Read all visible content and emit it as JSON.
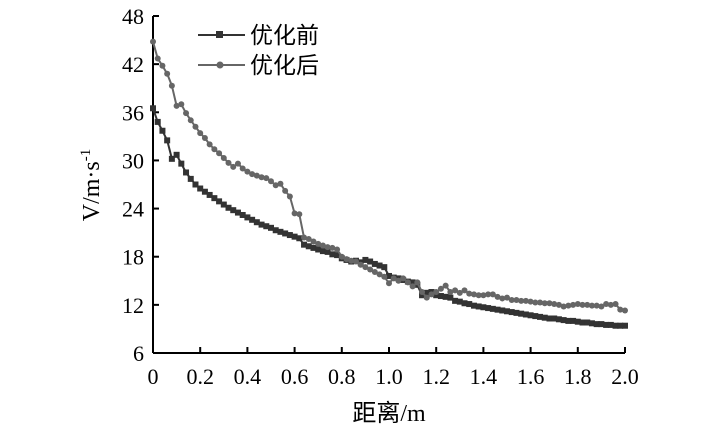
{
  "chart_data": {
    "type": "line",
    "title": "",
    "xlabel": "距离/m",
    "ylabel_main": "V/m·s",
    "ylabel_sup": "-1",
    "xlim": [
      0,
      2.0
    ],
    "ylim": [
      6,
      48
    ],
    "x_ticks": [
      "0",
      "0.2",
      "0.4",
      "0.6",
      "0.8",
      "1.0",
      "1.2",
      "1.4",
      "1.6",
      "1.8",
      "2.0"
    ],
    "y_ticks": [
      "6",
      "12",
      "18",
      "24",
      "30",
      "36",
      "42",
      "48"
    ],
    "grid": false,
    "legend_position": "top-left",
    "series": [
      {
        "name": "优化前",
        "color": "#333333",
        "marker": "square",
        "x": [
          0.0,
          0.02,
          0.04,
          0.06,
          0.08,
          0.1,
          0.12,
          0.14,
          0.16,
          0.18,
          0.2,
          0.22,
          0.24,
          0.26,
          0.28,
          0.3,
          0.32,
          0.34,
          0.36,
          0.38,
          0.4,
          0.42,
          0.44,
          0.46,
          0.48,
          0.5,
          0.52,
          0.54,
          0.56,
          0.58,
          0.6,
          0.62,
          0.64,
          0.66,
          0.68,
          0.7,
          0.72,
          0.74,
          0.76,
          0.78,
          0.8,
          0.82,
          0.84,
          0.86,
          0.88,
          0.9,
          0.92,
          0.94,
          0.96,
          0.98,
          1.0,
          1.02,
          1.04,
          1.06,
          1.08,
          1.1,
          1.12,
          1.14,
          1.16,
          1.18,
          1.2,
          1.22,
          1.24,
          1.26,
          1.28,
          1.3,
          1.32,
          1.34,
          1.36,
          1.38,
          1.4,
          1.42,
          1.44,
          1.46,
          1.48,
          1.5,
          1.52,
          1.54,
          1.56,
          1.58,
          1.6,
          1.62,
          1.64,
          1.66,
          1.68,
          1.7,
          1.72,
          1.74,
          1.76,
          1.78,
          1.8,
          1.82,
          1.84,
          1.86,
          1.88,
          1.9,
          1.92,
          1.94,
          1.96,
          1.98,
          2.0
        ],
        "y": [
          36.5,
          34.8,
          33.7,
          32.5,
          30.2,
          30.7,
          29.6,
          28.5,
          27.7,
          27.0,
          26.5,
          26.1,
          25.7,
          25.3,
          24.9,
          24.5,
          24.1,
          23.8,
          23.5,
          23.2,
          22.9,
          22.6,
          22.3,
          22.0,
          21.8,
          21.6,
          21.3,
          21.1,
          20.9,
          20.7,
          20.5,
          20.3,
          19.5,
          19.3,
          19.1,
          18.9,
          18.7,
          18.6,
          18.3,
          18.2,
          17.8,
          17.6,
          17.4,
          17.5,
          17.3,
          17.6,
          17.4,
          17.1,
          16.9,
          16.7,
          15.6,
          15.4,
          15.3,
          15.1,
          14.9,
          14.8,
          14.5,
          13.2,
          13.5,
          13.6,
          13.2,
          13.1,
          13.0,
          12.9,
          12.5,
          12.4,
          12.2,
          12.1,
          11.9,
          11.8,
          11.7,
          11.6,
          11.5,
          11.4,
          11.3,
          11.2,
          11.1,
          11.0,
          10.9,
          10.8,
          10.7,
          10.6,
          10.5,
          10.4,
          10.3,
          10.3,
          10.2,
          10.1,
          10.0,
          10.0,
          9.9,
          9.8,
          9.8,
          9.7,
          9.6,
          9.6,
          9.5,
          9.5,
          9.4,
          9.4,
          9.4
        ]
      },
      {
        "name": "优化后",
        "color": "#666666",
        "marker": "circle",
        "x": [
          0.0,
          0.02,
          0.04,
          0.06,
          0.08,
          0.1,
          0.12,
          0.14,
          0.16,
          0.18,
          0.2,
          0.22,
          0.24,
          0.26,
          0.28,
          0.3,
          0.32,
          0.34,
          0.36,
          0.38,
          0.4,
          0.42,
          0.44,
          0.46,
          0.48,
          0.5,
          0.52,
          0.54,
          0.56,
          0.58,
          0.6,
          0.62,
          0.64,
          0.66,
          0.68,
          0.7,
          0.72,
          0.74,
          0.76,
          0.78,
          0.8,
          0.82,
          0.84,
          0.86,
          0.88,
          0.9,
          0.92,
          0.94,
          0.96,
          0.98,
          1.0,
          1.02,
          1.04,
          1.06,
          1.08,
          1.1,
          1.12,
          1.14,
          1.16,
          1.18,
          1.2,
          1.22,
          1.24,
          1.26,
          1.28,
          1.3,
          1.32,
          1.34,
          1.36,
          1.38,
          1.4,
          1.42,
          1.44,
          1.46,
          1.48,
          1.5,
          1.52,
          1.54,
          1.56,
          1.58,
          1.6,
          1.62,
          1.64,
          1.66,
          1.68,
          1.7,
          1.72,
          1.74,
          1.76,
          1.78,
          1.8,
          1.82,
          1.84,
          1.86,
          1.88,
          1.9,
          1.92,
          1.94,
          1.96,
          1.98,
          2.0
        ],
        "y": [
          44.8,
          42.7,
          41.8,
          40.8,
          39.3,
          36.8,
          37.0,
          35.9,
          35.0,
          34.2,
          33.4,
          32.8,
          32.0,
          31.4,
          30.9,
          30.3,
          29.7,
          29.2,
          29.6,
          29.0,
          28.6,
          28.3,
          28.1,
          27.9,
          27.8,
          27.4,
          26.9,
          27.1,
          26.2,
          25.5,
          23.4,
          23.3,
          20.4,
          20.2,
          19.9,
          19.6,
          19.4,
          19.2,
          19.1,
          18.9,
          18.0,
          17.7,
          17.5,
          17.4,
          17.0,
          16.7,
          16.4,
          16.1,
          15.8,
          15.5,
          14.7,
          15.3,
          15.0,
          15.3,
          14.8,
          14.3,
          14.8,
          13.6,
          12.9,
          13.3,
          13.6,
          14.0,
          14.4,
          13.6,
          13.8,
          13.5,
          13.8,
          13.4,
          13.3,
          13.2,
          13.2,
          13.3,
          13.3,
          13.0,
          12.8,
          12.9,
          12.6,
          12.6,
          12.5,
          12.5,
          12.4,
          12.3,
          12.3,
          12.2,
          12.2,
          12.1,
          12.0,
          11.8,
          11.9,
          12.0,
          12.1,
          12.0,
          12.0,
          11.9,
          11.9,
          11.8,
          12.1,
          12.0,
          12.1,
          11.4,
          11.3
        ]
      }
    ]
  }
}
